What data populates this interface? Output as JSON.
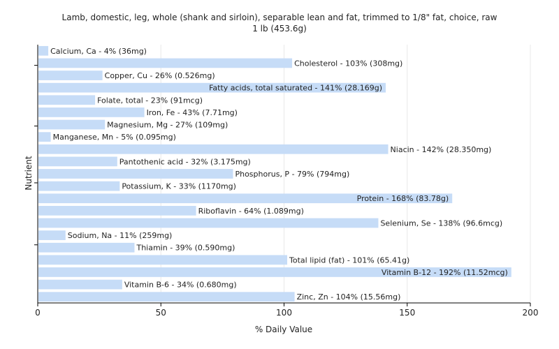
{
  "chart_data": {
    "type": "bar",
    "orientation": "horizontal",
    "title": "Lamb, domestic, leg, whole (shank and sirloin), separable lean and fat, trimmed to 1/8\" fat, choice, raw",
    "subtitle": "1 lb (453.6g)",
    "xlabel": "% Daily Value",
    "ylabel": "Nutrient",
    "xlim": [
      0,
      200
    ],
    "xticks": [
      0,
      50,
      100,
      150,
      200
    ],
    "grid": true,
    "bar_color": "#c6dcf7",
    "categories": [
      "Calcium, Ca",
      "Cholesterol",
      "Copper, Cu",
      "Fatty acids, total saturated",
      "Folate, total",
      "Iron, Fe",
      "Magnesium, Mg",
      "Manganese, Mn",
      "Niacin",
      "Pantothenic acid",
      "Phosphorus, P",
      "Potassium, K",
      "Protein",
      "Riboflavin",
      "Selenium, Se",
      "Sodium, Na",
      "Thiamin",
      "Total lipid (fat)",
      "Vitamin B-12",
      "Vitamin B-6",
      "Zinc, Zn"
    ],
    "values": [
      4,
      103,
      26,
      141,
      23,
      43,
      27,
      5,
      142,
      32,
      79,
      33,
      168,
      64,
      138,
      11,
      39,
      101,
      192,
      34,
      104
    ],
    "labels": [
      "Calcium, Ca - 4% (36mg)",
      "Cholesterol - 103% (308mg)",
      "Copper, Cu - 26% (0.526mg)",
      "Fatty acids, total saturated - 141% (28.169g)",
      "Folate, total - 23% (91mcg)",
      "Iron, Fe - 43% (7.71mg)",
      "Magnesium, Mg - 27% (109mg)",
      "Manganese, Mn - 5% (0.095mg)",
      "Niacin - 142% (28.350mg)",
      "Pantothenic acid - 32% (3.175mg)",
      "Phosphorus, P - 79% (794mg)",
      "Potassium, K - 33% (1170mg)",
      "Protein - 168% (83.78g)",
      "Riboflavin - 64% (1.089mg)",
      "Selenium, Se - 138% (96.6mcg)",
      "Sodium, Na - 11% (259mg)",
      "Thiamin - 39% (0.590mg)",
      "Total lipid (fat) - 101% (65.41g)",
      "Vitamin B-12 - 192% (11.52mcg)",
      "Vitamin B-6 - 34% (0.680mg)",
      "Zinc, Zn - 104% (15.56mg)"
    ]
  }
}
